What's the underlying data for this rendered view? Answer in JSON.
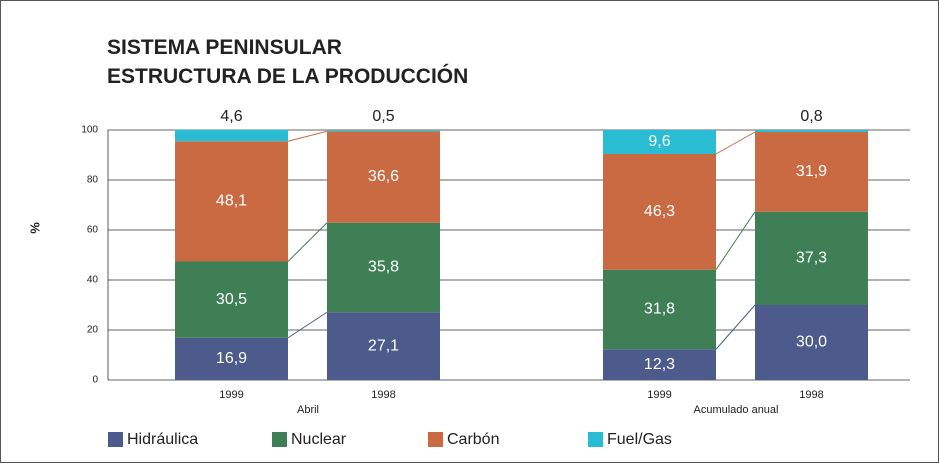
{
  "chart_data": {
    "type": "stacked_bar",
    "title": "SISTEMA PENINSULAR",
    "subtitle": "ESTRUCTURA DE LA PRODUCCIÓN",
    "ylabel": "%",
    "categories": [
      "1999",
      "1998",
      "1999",
      "1998"
    ],
    "groups": [
      "Abril",
      "Acumulado anual"
    ],
    "ylim": [
      0,
      100
    ],
    "yticks": [
      0,
      20,
      40,
      60,
      80,
      100
    ],
    "grid": true,
    "series": [
      {
        "name": "Hidráulica",
        "color": "#4d5a8c",
        "values": [
          16.9,
          27.1,
          12.3,
          30.0
        ],
        "value_labels": [
          "16,9",
          "27,1",
          "12,3",
          "30,0"
        ]
      },
      {
        "name": "Nuclear",
        "color": "#3e7f56",
        "values": [
          30.5,
          35.8,
          31.8,
          37.3
        ],
        "value_labels": [
          "30,5",
          "35,8",
          "31,8",
          "37,3"
        ]
      },
      {
        "name": "Carbón",
        "color": "#c96a43",
        "values": [
          48.1,
          36.6,
          46.3,
          31.9
        ],
        "value_labels": [
          "48,1",
          "36,6",
          "46,3",
          "31,9"
        ]
      },
      {
        "name": "Fuel/Gas",
        "color": "#29bcd3",
        "values": [
          4.6,
          0.5,
          9.6,
          0.8
        ],
        "value_labels": [
          "4,6",
          "0,5",
          "9,6",
          "0,8"
        ]
      }
    ]
  }
}
